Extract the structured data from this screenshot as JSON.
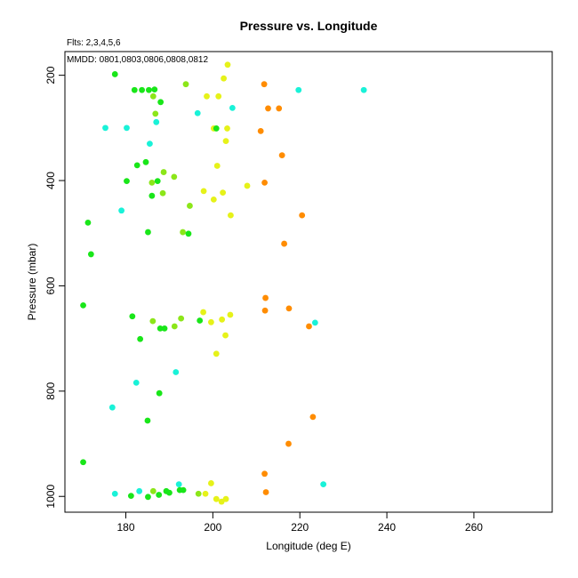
{
  "chart_data": {
    "type": "scatter",
    "title": "Pressure vs. Longitude",
    "subtitle": "Flts: 2,3,4,5,6",
    "annotation": "MMDD: 0801,0803,0806,0808,0812",
    "xlabel": "Longitude (deg E)",
    "ylabel": "Pressure (mbar)",
    "xlim": [
      166,
      278
    ],
    "ylim": [
      1030,
      155
    ],
    "y_inverted": true,
    "xticks": [
      180,
      200,
      220,
      240,
      260
    ],
    "yticks": [
      200,
      400,
      600,
      800,
      1000
    ],
    "grid": false,
    "colors": {
      "cyan": "#19f2d8",
      "green": "#19e619",
      "yellowgreen": "#8ce619",
      "yellow": "#e6f219",
      "orange": "#ff8c00"
    },
    "points": [
      {
        "x": 177.5,
        "y": 198,
        "c": "green"
      },
      {
        "x": 182.0,
        "y": 228,
        "c": "green"
      },
      {
        "x": 183.7,
        "y": 228,
        "c": "green"
      },
      {
        "x": 185.3,
        "y": 228,
        "c": "green"
      },
      {
        "x": 186.6,
        "y": 227,
        "c": "green"
      },
      {
        "x": 186.3,
        "y": 240,
        "c": "yellowgreen"
      },
      {
        "x": 188.0,
        "y": 251,
        "c": "green"
      },
      {
        "x": 186.8,
        "y": 273,
        "c": "yellowgreen"
      },
      {
        "x": 187.0,
        "y": 289,
        "c": "cyan"
      },
      {
        "x": 175.3,
        "y": 300,
        "c": "cyan"
      },
      {
        "x": 180.2,
        "y": 300,
        "c": "cyan"
      },
      {
        "x": 185.5,
        "y": 330,
        "c": "cyan"
      },
      {
        "x": 193.8,
        "y": 217,
        "c": "yellowgreen"
      },
      {
        "x": 196.5,
        "y": 272,
        "c": "cyan"
      },
      {
        "x": 198.6,
        "y": 240,
        "c": "yellow"
      },
      {
        "x": 201.3,
        "y": 240,
        "c": "yellow"
      },
      {
        "x": 202.5,
        "y": 206,
        "c": "yellow"
      },
      {
        "x": 203.4,
        "y": 180,
        "c": "yellow"
      },
      {
        "x": 204.5,
        "y": 262,
        "c": "cyan"
      },
      {
        "x": 200.2,
        "y": 301,
        "c": "yellow"
      },
      {
        "x": 200.8,
        "y": 301,
        "c": "green"
      },
      {
        "x": 203.3,
        "y": 301,
        "c": "yellow"
      },
      {
        "x": 203.0,
        "y": 325,
        "c": "yellow"
      },
      {
        "x": 211.8,
        "y": 217,
        "c": "orange"
      },
      {
        "x": 212.7,
        "y": 263,
        "c": "orange"
      },
      {
        "x": 215.2,
        "y": 263,
        "c": "orange"
      },
      {
        "x": 219.7,
        "y": 228,
        "c": "cyan"
      },
      {
        "x": 234.7,
        "y": 228,
        "c": "cyan"
      },
      {
        "x": 211.0,
        "y": 306,
        "c": "orange"
      },
      {
        "x": 215.9,
        "y": 352,
        "c": "orange"
      },
      {
        "x": 184.6,
        "y": 365,
        "c": "green"
      },
      {
        "x": 182.6,
        "y": 371,
        "c": "green"
      },
      {
        "x": 188.7,
        "y": 384,
        "c": "yellowgreen"
      },
      {
        "x": 191.1,
        "y": 393,
        "c": "yellowgreen"
      },
      {
        "x": 180.2,
        "y": 401,
        "c": "green"
      },
      {
        "x": 187.3,
        "y": 401,
        "c": "green"
      },
      {
        "x": 186.0,
        "y": 404,
        "c": "yellowgreen"
      },
      {
        "x": 188.5,
        "y": 424,
        "c": "yellowgreen"
      },
      {
        "x": 186.0,
        "y": 429,
        "c": "green"
      },
      {
        "x": 194.7,
        "y": 448,
        "c": "yellowgreen"
      },
      {
        "x": 179.0,
        "y": 457,
        "c": "cyan"
      },
      {
        "x": 201.0,
        "y": 372,
        "c": "yellow"
      },
      {
        "x": 197.9,
        "y": 420,
        "c": "yellow"
      },
      {
        "x": 202.3,
        "y": 423,
        "c": "yellow"
      },
      {
        "x": 200.2,
        "y": 436,
        "c": "yellow"
      },
      {
        "x": 204.1,
        "y": 466,
        "c": "yellow"
      },
      {
        "x": 211.9,
        "y": 404,
        "c": "orange"
      },
      {
        "x": 207.9,
        "y": 410,
        "c": "yellow"
      },
      {
        "x": 220.5,
        "y": 466,
        "c": "orange"
      },
      {
        "x": 171.3,
        "y": 480,
        "c": "green"
      },
      {
        "x": 185.1,
        "y": 498,
        "c": "green"
      },
      {
        "x": 193.1,
        "y": 498,
        "c": "yellowgreen"
      },
      {
        "x": 194.4,
        "y": 501,
        "c": "green"
      },
      {
        "x": 216.4,
        "y": 520,
        "c": "orange"
      },
      {
        "x": 172.0,
        "y": 540,
        "c": "green"
      },
      {
        "x": 170.2,
        "y": 637,
        "c": "green"
      },
      {
        "x": 181.5,
        "y": 658,
        "c": "green"
      },
      {
        "x": 192.7,
        "y": 662,
        "c": "yellowgreen"
      },
      {
        "x": 186.2,
        "y": 667,
        "c": "yellowgreen"
      },
      {
        "x": 197.0,
        "y": 666,
        "c": "green"
      },
      {
        "x": 191.2,
        "y": 677,
        "c": "yellowgreen"
      },
      {
        "x": 187.9,
        "y": 681,
        "c": "green"
      },
      {
        "x": 188.9,
        "y": 681,
        "c": "green"
      },
      {
        "x": 183.3,
        "y": 701,
        "c": "green"
      },
      {
        "x": 197.8,
        "y": 650,
        "c": "yellow"
      },
      {
        "x": 204.0,
        "y": 655,
        "c": "yellow"
      },
      {
        "x": 202.1,
        "y": 664,
        "c": "yellow"
      },
      {
        "x": 199.6,
        "y": 669,
        "c": "yellow"
      },
      {
        "x": 202.9,
        "y": 694,
        "c": "yellow"
      },
      {
        "x": 200.8,
        "y": 729,
        "c": "yellow"
      },
      {
        "x": 212.1,
        "y": 623,
        "c": "orange"
      },
      {
        "x": 212.0,
        "y": 647,
        "c": "orange"
      },
      {
        "x": 217.5,
        "y": 643,
        "c": "orange"
      },
      {
        "x": 222.1,
        "y": 677,
        "c": "orange"
      },
      {
        "x": 223.5,
        "y": 670,
        "c": "cyan"
      },
      {
        "x": 191.5,
        "y": 764,
        "c": "cyan"
      },
      {
        "x": 182.4,
        "y": 784,
        "c": "cyan"
      },
      {
        "x": 187.7,
        "y": 804,
        "c": "green"
      },
      {
        "x": 176.9,
        "y": 831,
        "c": "cyan"
      },
      {
        "x": 185.0,
        "y": 856,
        "c": "green"
      },
      {
        "x": 223.0,
        "y": 849,
        "c": "orange"
      },
      {
        "x": 217.4,
        "y": 900,
        "c": "orange"
      },
      {
        "x": 170.2,
        "y": 935,
        "c": "green"
      },
      {
        "x": 211.9,
        "y": 957,
        "c": "orange"
      },
      {
        "x": 225.4,
        "y": 977,
        "c": "cyan"
      },
      {
        "x": 192.2,
        "y": 977,
        "c": "cyan"
      },
      {
        "x": 199.6,
        "y": 975,
        "c": "yellow"
      },
      {
        "x": 177.5,
        "y": 995,
        "c": "cyan"
      },
      {
        "x": 181.2,
        "y": 999,
        "c": "green"
      },
      {
        "x": 183.1,
        "y": 990,
        "c": "cyan"
      },
      {
        "x": 185.1,
        "y": 1001,
        "c": "green"
      },
      {
        "x": 186.3,
        "y": 990,
        "c": "yellowgreen"
      },
      {
        "x": 187.6,
        "y": 997,
        "c": "green"
      },
      {
        "x": 189.3,
        "y": 990,
        "c": "green"
      },
      {
        "x": 190.0,
        "y": 993,
        "c": "green"
      },
      {
        "x": 192.4,
        "y": 988,
        "c": "green"
      },
      {
        "x": 193.2,
        "y": 988,
        "c": "green"
      },
      {
        "x": 196.7,
        "y": 995,
        "c": "yellowgreen"
      },
      {
        "x": 198.3,
        "y": 995,
        "c": "yellow"
      },
      {
        "x": 200.8,
        "y": 1005,
        "c": "yellow"
      },
      {
        "x": 202.0,
        "y": 1010,
        "c": "yellow"
      },
      {
        "x": 203.0,
        "y": 1005,
        "c": "yellow"
      },
      {
        "x": 212.2,
        "y": 992,
        "c": "orange"
      }
    ]
  }
}
